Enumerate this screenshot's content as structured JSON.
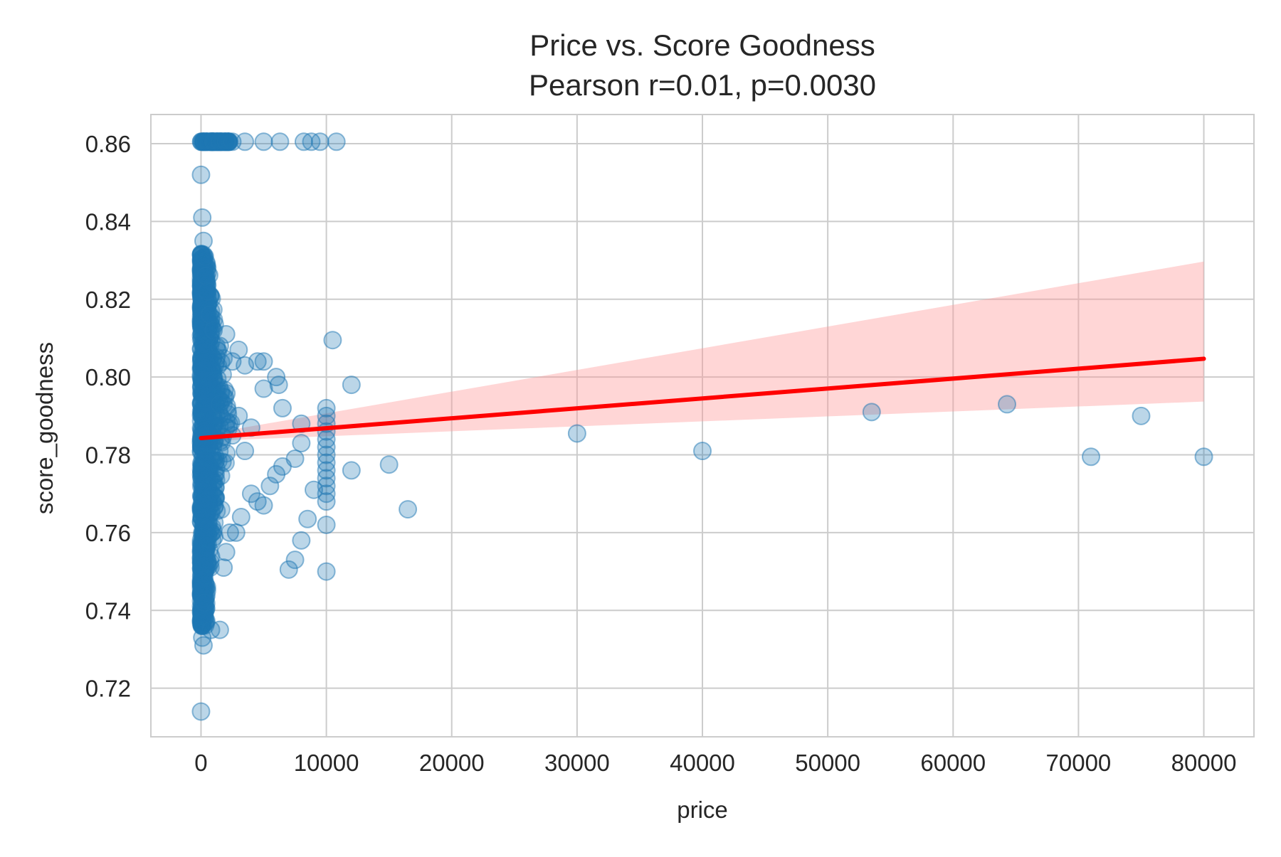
{
  "chart_data": {
    "type": "scatter",
    "title": "Price vs. Score Goodness",
    "subtitle": "Pearson r=0.01, p=0.0030",
    "xlabel": "price",
    "ylabel": "score_goodness",
    "xlim": [
      -4000,
      84000
    ],
    "ylim": [
      0.7075,
      0.8675
    ],
    "xticks": [
      0,
      10000,
      20000,
      30000,
      40000,
      50000,
      60000,
      70000,
      80000
    ],
    "yticks": [
      0.72,
      0.74,
      0.76,
      0.78,
      0.8,
      0.82,
      0.84,
      0.86
    ],
    "grid": true,
    "colors": {
      "points": "#1f77b4",
      "regression_line": "#ff0000",
      "confidence_band": "#ff9999",
      "grid": "#cccccc",
      "spine": "#cccccc"
    },
    "regression": {
      "x": [
        0,
        80000
      ],
      "y": [
        0.7843,
        0.8047
      ],
      "ci_lower": [
        0.7835,
        0.7937
      ],
      "ci_upper": [
        0.7851,
        0.8297
      ]
    },
    "series": [
      {
        "points": [
          [
            0,
            0.714
          ],
          [
            0,
            0.852
          ],
          [
            100,
            0.841
          ],
          [
            200,
            0.835
          ],
          [
            300,
            0.831
          ],
          [
            400,
            0.826
          ],
          [
            500,
            0.822
          ],
          [
            700,
            0.816
          ],
          [
            1000,
            0.812
          ],
          [
            1500,
            0.808
          ],
          [
            2000,
            0.811
          ],
          [
            2500,
            0.804
          ],
          [
            3000,
            0.807
          ],
          [
            3500,
            0.803
          ],
          [
            4500,
            0.804
          ],
          [
            5000,
            0.804
          ],
          [
            5000,
            0.797
          ],
          [
            6000,
            0.8
          ],
          [
            6200,
            0.798
          ],
          [
            6500,
            0.792
          ],
          [
            800,
            0.735
          ],
          [
            1500,
            0.735
          ],
          [
            200,
            0.731
          ],
          [
            100,
            0.733
          ],
          [
            300,
            0.742
          ],
          [
            2000,
            0.755
          ],
          [
            1800,
            0.751
          ],
          [
            2300,
            0.76
          ],
          [
            2800,
            0.76
          ],
          [
            3200,
            0.764
          ],
          [
            4000,
            0.77
          ],
          [
            4500,
            0.768
          ],
          [
            5000,
            0.767
          ],
          [
            5500,
            0.772
          ],
          [
            6000,
            0.775
          ],
          [
            6500,
            0.777
          ],
          [
            7000,
            0.7505
          ],
          [
            7500,
            0.753
          ],
          [
            8000,
            0.758
          ],
          [
            8500,
            0.7635
          ],
          [
            9000,
            0.771
          ],
          [
            7500,
            0.779
          ],
          [
            8000,
            0.783
          ],
          [
            8000,
            0.788
          ],
          [
            3000,
            0.79
          ],
          [
            4000,
            0.787
          ],
          [
            2000,
            0.787
          ],
          [
            1500,
            0.793
          ],
          [
            2500,
            0.785
          ],
          [
            3500,
            0.781
          ],
          [
            10000,
            0.75
          ],
          [
            10000,
            0.762
          ],
          [
            10000,
            0.768
          ],
          [
            10000,
            0.772
          ],
          [
            10000,
            0.776
          ],
          [
            10000,
            0.78
          ],
          [
            10000,
            0.784
          ],
          [
            10000,
            0.788
          ],
          [
            10000,
            0.792
          ],
          [
            10000,
            0.79
          ],
          [
            10000,
            0.786
          ],
          [
            10000,
            0.782
          ],
          [
            10000,
            0.778
          ],
          [
            10000,
            0.774
          ],
          [
            10000,
            0.77
          ],
          [
            10500,
            0.8095
          ],
          [
            12000,
            0.798
          ],
          [
            12000,
            0.776
          ],
          [
            15000,
            0.7775
          ],
          [
            16500,
            0.766
          ],
          [
            30000,
            0.7855
          ],
          [
            40000,
            0.781
          ],
          [
            53500,
            0.791
          ],
          [
            64300,
            0.793
          ],
          [
            71000,
            0.7795
          ],
          [
            75000,
            0.79
          ],
          [
            80000,
            0.7795
          ],
          [
            500,
            0.8605
          ],
          [
            1000,
            0.8605
          ],
          [
            1500,
            0.8605
          ],
          [
            2000,
            0.8605
          ],
          [
            2500,
            0.8605
          ],
          [
            3500,
            0.8605
          ],
          [
            5000,
            0.8605
          ],
          [
            6300,
            0.8605
          ],
          [
            8200,
            0.8605
          ],
          [
            8800,
            0.8605
          ],
          [
            9500,
            0.8605
          ],
          [
            10800,
            0.8605
          ]
        ]
      }
    ]
  }
}
